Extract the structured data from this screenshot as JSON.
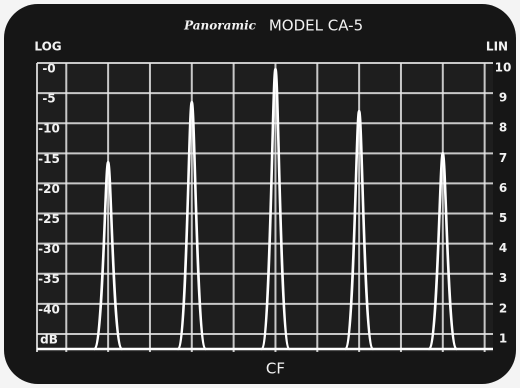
{
  "chart_data": {
    "type": "spectrum",
    "brand": "Panoramic",
    "title": "MODEL CA-5",
    "y_label": "LOG",
    "y2_label": "LIN",
    "x": [
      -4,
      -2,
      0,
      2,
      4
    ],
    "values": [
      -16.5,
      -6.5,
      -1,
      -8,
      -15
    ],
    "color": "#ffffff",
    "xlim": [
      -5.7,
      5.2
    ],
    "xticks": [
      {
        "value": -5,
        "label": null
      },
      {
        "value": -4,
        "label": null
      },
      {
        "value": -3,
        "label": null
      },
      {
        "value": -2,
        "label": null
      },
      {
        "value": -1,
        "label": null
      },
      {
        "value": 0,
        "label": "CF"
      },
      {
        "value": 1,
        "label": null
      },
      {
        "value": 2,
        "label": null
      },
      {
        "value": 3,
        "label": null
      },
      {
        "value": 4,
        "label": null
      },
      {
        "value": 5,
        "label": null
      }
    ],
    "ylim": [
      -48,
      0
    ],
    "yticks": [
      {
        "value": 0,
        "label": "-0"
      },
      -5,
      -10,
      -15,
      -20,
      -25,
      -30,
      -35,
      -40,
      {
        "value": -45,
        "label": "dB"
      }
    ],
    "y2lim": [
      0.4,
      10
    ],
    "y2ticks": [
      10,
      9,
      8,
      7,
      6,
      5,
      4,
      3,
      2,
      1
    ],
    "grid": true
  }
}
